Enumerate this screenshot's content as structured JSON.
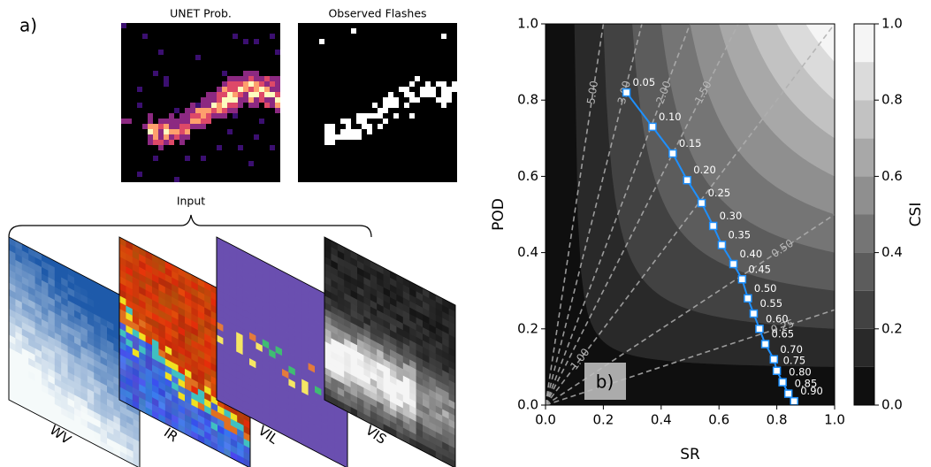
{
  "panel_a": {
    "label": "a)",
    "prediction_title": "UNET Prob.",
    "observed_title": "Observed Flashes",
    "input_label": "Input",
    "inputs": [
      "WV",
      "IR",
      "VIL",
      "VIS"
    ]
  },
  "chart_data": {
    "type": "performance",
    "panel_label": "b)",
    "xlabel": "SR",
    "ylabel": "POD",
    "colorbar_label": "CSI",
    "xlim": [
      0,
      1
    ],
    "ylim": [
      0,
      1
    ],
    "xticks": [
      {
        "value": 0,
        "label": "0.0"
      },
      {
        "value": 0.2,
        "label": "0.2"
      },
      {
        "value": 0.4,
        "label": "0.4"
      },
      {
        "value": 0.6,
        "label": "0.6"
      },
      {
        "value": 0.8,
        "label": "0.8"
      },
      {
        "value": 1,
        "label": "1.0"
      }
    ],
    "yticks": [
      {
        "value": 0,
        "label": "0.0"
      },
      {
        "value": 0.2,
        "label": "0.2"
      },
      {
        "value": 0.4,
        "label": "0.4"
      },
      {
        "value": 0.6,
        "label": "0.6"
      },
      {
        "value": 0.8,
        "label": "0.8"
      },
      {
        "value": 1,
        "label": "1.0"
      }
    ],
    "clim": [
      0,
      1
    ],
    "cticks": [
      {
        "value": 0,
        "label": "0.0"
      },
      {
        "value": 0.2,
        "label": "0.2"
      },
      {
        "value": 0.4,
        "label": "0.4"
      },
      {
        "value": 0.6,
        "label": "0.6"
      },
      {
        "value": 0.8,
        "label": "0.8"
      },
      {
        "value": 1,
        "label": "1.0"
      }
    ],
    "contour_levels": [
      0,
      0.1,
      0.2,
      0.3,
      0.4,
      0.5,
      0.6,
      0.7,
      0.8,
      0.9,
      1
    ],
    "bias_lines": [
      {
        "value": 0.25,
        "label": "0.25"
      },
      {
        "value": 0.5,
        "label": "0.50"
      },
      {
        "value": 1,
        "label": "1.00"
      },
      {
        "value": 1.5,
        "label": "1.50"
      },
      {
        "value": 2,
        "label": "2.00"
      },
      {
        "value": 3,
        "label": "3.00"
      },
      {
        "value": 5,
        "label": "5.00"
      }
    ],
    "series": [
      {
        "color": "#1e90ff",
        "x": [
          0.28,
          0.37,
          0.44,
          0.49,
          0.54,
          0.58,
          0.61,
          0.65,
          0.68,
          0.7,
          0.72,
          0.74,
          0.76,
          0.79,
          0.8,
          0.82,
          0.84,
          0.86
        ],
        "values": [
          0.82,
          0.73,
          0.66,
          0.59,
          0.53,
          0.47,
          0.42,
          0.37,
          0.33,
          0.28,
          0.24,
          0.2,
          0.16,
          0.12,
          0.09,
          0.06,
          0.03,
          0.01
        ],
        "labels": [
          "0.05",
          "0.10",
          "0.15",
          "0.20",
          "0.25",
          "0.30",
          "0.35",
          "0.40",
          "0.45",
          "0.50",
          "0.55",
          "0.60",
          "0.65",
          "0.70",
          "0.75",
          "0.80",
          "0.85",
          "0.90"
        ]
      }
    ]
  }
}
